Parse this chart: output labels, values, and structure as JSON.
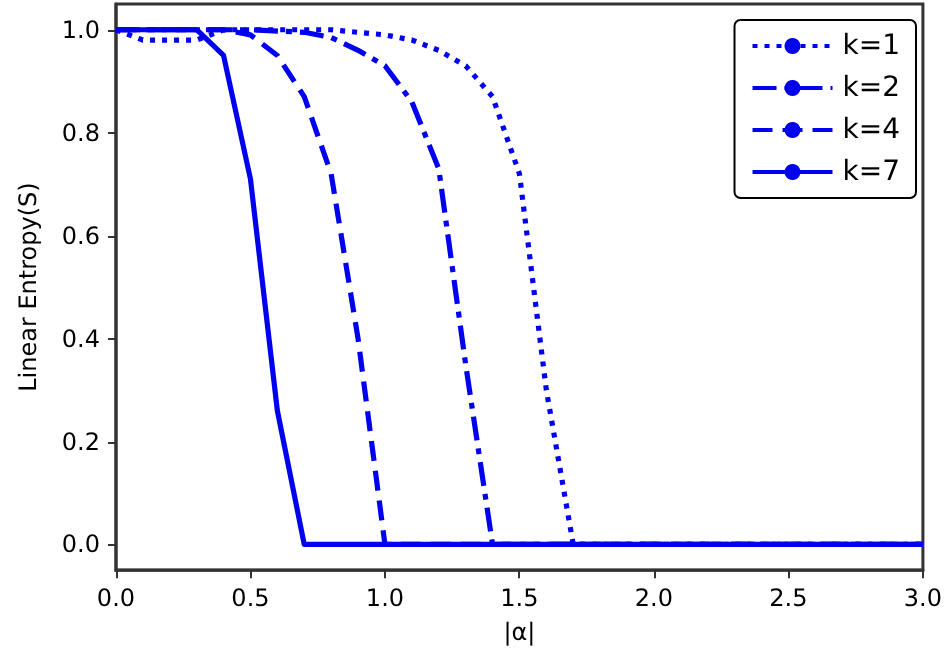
{
  "chart_data": {
    "type": "line",
    "xlabel": "|α|",
    "ylabel": "Linear Entropy(S)",
    "legend": "top right",
    "grid": false,
    "marker": "none",
    "xlim": [
      0,
      3
    ],
    "xticks": [
      {
        "value": 0,
        "label": "0.0"
      },
      {
        "value": 0.5,
        "label": "0.5"
      },
      {
        "value": 1,
        "label": "1.0"
      },
      {
        "value": 1.5,
        "label": "1.5"
      },
      {
        "value": 2,
        "label": "2.0"
      },
      {
        "value": 2.5,
        "label": "2.5"
      },
      {
        "value": 3,
        "label": "3.0"
      }
    ],
    "ylim": [
      -0.05,
      1.05
    ],
    "yticks": [
      {
        "value": 0,
        "label": "0.0"
      },
      0.2,
      0.4,
      0.6,
      0.8,
      {
        "value": 1,
        "label": "1.0"
      }
    ],
    "series": [
      {
        "name": "k=1",
        "color": "#0000ee",
        "line_style": "dotted",
        "x": [
          0,
          0.1,
          0.2,
          0.3,
          0.4,
          0.5,
          0.6,
          0.7,
          0.8,
          0.9,
          1.0,
          1.1,
          1.2,
          1.3,
          1.4,
          1.5,
          1.6,
          1.7,
          3.0
        ],
        "values": [
          1,
          0.98,
          0.98,
          0.98,
          1,
          1,
          1,
          1,
          1,
          0.995,
          0.99,
          0.98,
          0.96,
          0.93,
          0.87,
          0.72,
          0.3,
          0,
          0
        ]
      },
      {
        "name": "k=2",
        "color": "#0000ee",
        "line_style": "dashdot",
        "x": [
          0,
          0.3,
          0.5,
          0.7,
          0.8,
          0.9,
          1.0,
          1.1,
          1.2,
          1.3,
          1.4,
          3.0
        ],
        "values": [
          1,
          1,
          1,
          0.995,
          0.985,
          0.96,
          0.93,
          0.86,
          0.73,
          0.35,
          0,
          0
        ]
      },
      {
        "name": "k=4",
        "color": "#0000ee",
        "line_style": "dashed",
        "x": [
          0,
          0.4,
          0.5,
          0.6,
          0.7,
          0.8,
          0.9,
          1.0,
          3.0
        ],
        "values": [
          1,
          1,
          0.99,
          0.95,
          0.87,
          0.72,
          0.4,
          0,
          0
        ]
      },
      {
        "name": "k=7",
        "color": "#0000ee",
        "line_style": "solid",
        "x": [
          0,
          0.3,
          0.4,
          0.5,
          0.6,
          0.7,
          3.0
        ],
        "values": [
          1,
          1,
          0.95,
          0.71,
          0.26,
          0,
          0
        ]
      }
    ]
  }
}
